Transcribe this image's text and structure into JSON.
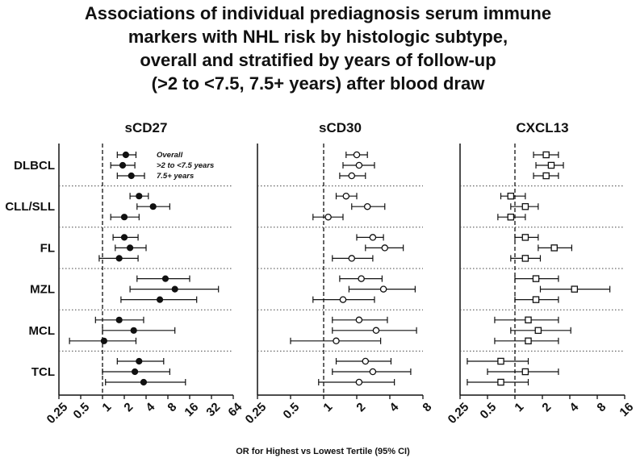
{
  "title_lines": [
    "Associations of individual prediagnosis serum immune",
    "markers with NHL risk by histologic subtype,",
    "overall and stratified by years of follow-up",
    "(>2 to <7.5, 7.5+ years) after blood draw"
  ],
  "chart_data": {
    "type": "forest",
    "xlabel": "OR for Highest vs Lowest Tertile (95% CI)",
    "x_scale": "log2",
    "reference_line": 1,
    "subtypes": [
      "DLBCL",
      "CLL/SLL",
      "FL",
      "MZL",
      "MCL",
      "TCL"
    ],
    "strata": [
      "Overall",
      ">2 to <7.5 years",
      "7.5+ years"
    ],
    "panels": [
      {
        "title": "sCD27",
        "marker": "filled-circle",
        "xlim": [
          0.25,
          64
        ],
        "ticks": [
          0.25,
          0.5,
          1,
          2,
          4,
          8,
          16,
          32,
          64
        ],
        "tick_labels": [
          "0.25",
          "0.5",
          "1",
          "2",
          "4",
          "8",
          "16",
          "32",
          "64"
        ],
        "show_legend": true,
        "estimates": [
          [
            [
              2.1,
              1.6,
              2.9
            ],
            [
              1.9,
              1.3,
              2.8
            ],
            [
              2.5,
              1.6,
              3.8
            ]
          ],
          [
            [
              3.2,
              2.4,
              4.3
            ],
            [
              5.0,
              3.0,
              8.5
            ],
            [
              2.0,
              1.3,
              3.2
            ]
          ],
          [
            [
              2.0,
              1.4,
              3.1
            ],
            [
              2.4,
              1.5,
              4.0
            ],
            [
              1.7,
              0.9,
              3.1
            ]
          ],
          [
            [
              7.4,
              3.0,
              16.0
            ],
            [
              10.0,
              2.4,
              40.0
            ],
            [
              6.2,
              1.8,
              20.0
            ]
          ],
          [
            [
              1.7,
              0.8,
              3.7
            ],
            [
              2.7,
              1.0,
              10.0
            ],
            [
              1.05,
              0.35,
              2.9
            ]
          ],
          [
            [
              3.2,
              1.6,
              7.0
            ],
            [
              2.8,
              1.0,
              8.5
            ],
            [
              3.7,
              1.1,
              14.0
            ]
          ]
        ]
      },
      {
        "title": "sCD30",
        "marker": "open-circle",
        "xlim": [
          0.25,
          8
        ],
        "ticks": [
          0.25,
          0.5,
          1,
          2,
          4,
          8
        ],
        "tick_labels": [
          "0.25",
          "0.5",
          "1",
          "2",
          "4",
          "8"
        ],
        "show_legend": false,
        "estimates": [
          [
            [
              2.0,
              1.6,
              2.5
            ],
            [
              2.1,
              1.5,
              2.9
            ],
            [
              1.8,
              1.4,
              2.4
            ]
          ],
          [
            [
              1.6,
              1.3,
              2.0
            ],
            [
              2.5,
              1.8,
              3.6
            ],
            [
              1.1,
              0.8,
              1.5
            ]
          ],
          [
            [
              2.8,
              2.0,
              3.5
            ],
            [
              3.6,
              2.4,
              5.3
            ],
            [
              1.8,
              1.2,
              2.8
            ]
          ],
          [
            [
              2.2,
              1.4,
              3.4
            ],
            [
              3.5,
              1.7,
              6.8
            ],
            [
              1.5,
              0.8,
              2.9
            ]
          ],
          [
            [
              2.1,
              1.2,
              3.8
            ],
            [
              3.0,
              1.2,
              7.0
            ],
            [
              1.3,
              0.5,
              3.3
            ]
          ],
          [
            [
              2.4,
              1.3,
              4.1
            ],
            [
              2.8,
              1.2,
              6.2
            ],
            [
              2.1,
              0.9,
              4.4
            ]
          ]
        ]
      },
      {
        "title": "CXCL13",
        "marker": "open-square",
        "xlim": [
          0.25,
          16
        ],
        "ticks": [
          0.25,
          0.5,
          1,
          2,
          4,
          8,
          16
        ],
        "tick_labels": [
          "0.25",
          "0.5",
          "1",
          "2",
          "4",
          "8",
          "16"
        ],
        "show_legend": false,
        "estimates": [
          [
            [
              2.2,
              1.6,
              3.0
            ],
            [
              2.5,
              1.7,
              3.4
            ],
            [
              2.2,
              1.6,
              3.0
            ]
          ],
          [
            [
              0.9,
              0.7,
              1.3
            ],
            [
              1.3,
              0.9,
              1.8
            ],
            [
              0.9,
              0.65,
              1.3
            ]
          ],
          [
            [
              1.3,
              1.0,
              1.8
            ],
            [
              2.7,
              1.8,
              4.2
            ],
            [
              1.3,
              0.9,
              1.9
            ]
          ],
          [
            [
              1.7,
              1.0,
              3.0
            ],
            [
              4.5,
              1.9,
              11.0
            ],
            [
              1.7,
              1.0,
              3.0
            ]
          ],
          [
            [
              1.4,
              0.6,
              3.0
            ],
            [
              1.8,
              0.9,
              4.1
            ],
            [
              1.4,
              0.6,
              3.0
            ]
          ],
          [
            [
              0.7,
              0.3,
              1.4
            ],
            [
              1.3,
              0.5,
              3.0
            ],
            [
              0.7,
              0.3,
              1.4
            ]
          ]
        ]
      }
    ]
  }
}
